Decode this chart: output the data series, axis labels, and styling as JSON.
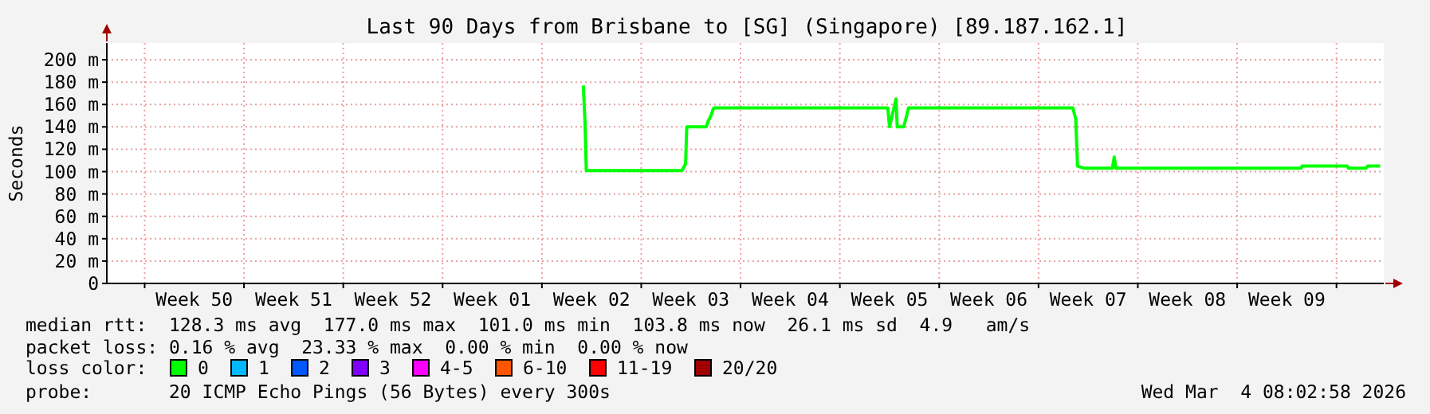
{
  "chart_data": {
    "type": "line",
    "title": "Last 90 Days from Brisbane to [SG] (Singapore) [89.187.162.1]",
    "ylabel": "Seconds",
    "legend_title": "loss color:",
    "xlim": [
      "2025-12-04T08:00",
      "2026-03-04T08:00"
    ],
    "xticks": [
      {
        "value": "2025-12-07",
        "label": null
      },
      {
        "value": "2025-12-10T12:00",
        "label": "Week 50"
      },
      {
        "value": "2025-12-14",
        "label": null
      },
      {
        "value": "2025-12-17T12:00",
        "label": "Week 51"
      },
      {
        "value": "2025-12-21",
        "label": null
      },
      {
        "value": "2025-12-24T12:00",
        "label": "Week 52"
      },
      {
        "value": "2025-12-28",
        "label": null
      },
      {
        "value": "2025-12-31T12:00",
        "label": "Week 01"
      },
      {
        "value": "2026-01-04",
        "label": null
      },
      {
        "value": "2026-01-07T12:00",
        "label": "Week 02"
      },
      {
        "value": "2026-01-11",
        "label": null
      },
      {
        "value": "2026-01-14T12:00",
        "label": "Week 03"
      },
      {
        "value": "2026-01-18",
        "label": null
      },
      {
        "value": "2026-01-21T12:00",
        "label": "Week 04"
      },
      {
        "value": "2026-01-25",
        "label": null
      },
      {
        "value": "2026-01-28T12:00",
        "label": "Week 05"
      },
      {
        "value": "2026-02-01",
        "label": null
      },
      {
        "value": "2026-02-04T12:00",
        "label": "Week 06"
      },
      {
        "value": "2026-02-08T00:00",
        "label": null
      },
      {
        "value": "2026-02-11T12:00",
        "label": "Week 07"
      },
      {
        "value": "2026-02-15T00:00",
        "label": null
      },
      {
        "value": "2026-02-18T12:00",
        "label": "Week 08"
      },
      {
        "value": "2026-02-22T00:00",
        "label": null
      },
      {
        "value": "2026-02-25T12:00",
        "label": "Week 09"
      },
      {
        "value": "2026-03-01T00:00",
        "label": null
      }
    ],
    "ylim": [
      0,
      215
    ],
    "yticks": [
      0,
      {
        "value": 20,
        "label": "20 m"
      },
      {
        "value": 40,
        "label": "40 m"
      },
      {
        "value": 60,
        "label": "60 m"
      },
      {
        "value": 80,
        "label": "80 m"
      },
      {
        "value": 100,
        "label": "100 m"
      },
      {
        "value": 120,
        "label": "120 m"
      },
      {
        "value": 140,
        "label": "140 m"
      },
      {
        "value": 160,
        "label": "160 m"
      },
      {
        "value": 180,
        "label": "180 m"
      },
      {
        "value": 200,
        "label": "200 m"
      }
    ],
    "grid": true,
    "legend": "bottom",
    "marker": "none",
    "line_style": "solid",
    "series": [
      {
        "name": "0",
        "color": "#00ff00",
        "x": [
          "2026-01-06T22:00",
          "2026-01-07T01:00",
          "2026-01-07T03:00",
          "2026-01-13T21:00",
          "2026-01-14T03:00",
          "2026-01-14T05:00",
          "2026-01-15T14:00",
          "2026-01-15T17:00",
          "2026-01-15T22:00",
          "2026-01-16T01:00",
          "2026-01-16T03:00",
          "2026-01-28T09:00",
          "2026-01-28T12:00",
          "2026-01-28T23:00",
          "2026-01-29T01:00",
          "2026-01-29T12:00",
          "2026-01-29T17:00",
          "2026-01-29T20:00",
          "2026-02-10T10:00",
          "2026-02-10T15:00",
          "2026-02-10T18:00",
          "2026-02-11T05:00",
          "2026-02-13T05:00",
          "2026-02-13T08:00",
          "2026-02-13T11:00",
          "2026-02-26T12:00",
          "2026-02-26T14:00",
          "2026-03-01T18:00",
          "2026-03-01T20:00",
          "2026-03-03T02:00",
          "2026-03-03T05:00",
          "2026-03-04T02:00"
        ],
        "values": [
          177,
          143,
          101,
          101,
          107,
          140,
          140,
          145,
          150,
          155,
          157,
          157,
          140,
          165,
          140,
          140,
          150,
          157,
          157,
          147,
          105,
          103,
          103,
          113,
          103,
          103,
          105,
          105,
          103,
          103,
          105,
          105
        ]
      },
      {
        "name": "1",
        "color": "#00b8ff"
      },
      {
        "name": "2",
        "color": "#0059ff"
      },
      {
        "name": "3",
        "color": "#7e00ff"
      },
      {
        "name": "4-5",
        "color": "#ff00ff"
      },
      {
        "name": "6-10",
        "color": "#ff5500"
      },
      {
        "name": "11-19",
        "color": "#ff0000"
      },
      {
        "name": "20/20",
        "color": "#a10000"
      }
    ],
    "annotations": [
      "median rtt:  128.3 ms avg  177.0 ms max  101.0 ms min  103.8 ms now  26.1 ms sd  4.9   am/s",
      "packet loss: 0.16 % avg  23.33 % max  0.00 % min  0.00 % now",
      "probe:       20 ICMP Echo Pings (56 Bytes) every 300s",
      "Wed Mar  4 08:02:58 2026"
    ]
  }
}
